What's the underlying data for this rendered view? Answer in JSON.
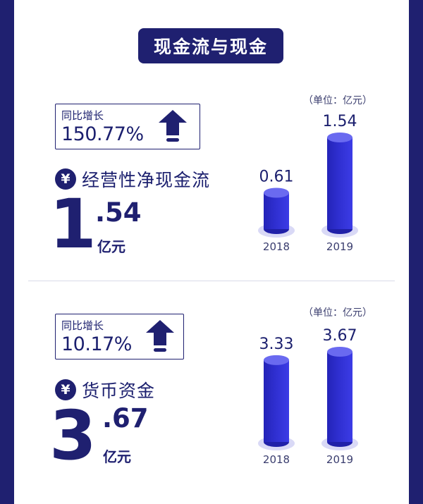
{
  "page": {
    "title": "现金流与现金"
  },
  "sections": [
    {
      "growth_label": "同比增长",
      "growth_value": "150.77%",
      "metric_name": "经营性净现金流",
      "amount_int": "1",
      "amount_dec": ".54",
      "amount_unit": "亿元",
      "unit_note": "（单位：亿元）"
    },
    {
      "growth_label": "同比增长",
      "growth_value": "10.17%",
      "metric_name": "货币资金",
      "amount_int": "3",
      "amount_dec": ".67",
      "amount_unit": "亿元",
      "unit_note": "（单位：亿元）"
    }
  ],
  "icons": {
    "currency": "¥",
    "arrow": "up-arrow-icon"
  },
  "colors": {
    "primary": "#1f2070",
    "bar": "#2f2fd0",
    "bar_top": "#6a6af0"
  },
  "chart_data": [
    {
      "type": "bar",
      "categories": [
        "2018",
        "2019"
      ],
      "values": [
        0.61,
        1.54
      ],
      "value_labels": [
        "0.61",
        "1.54"
      ],
      "ylim": [
        0,
        1.54
      ]
    },
    {
      "type": "bar",
      "categories": [
        "2018",
        "2019"
      ],
      "values": [
        3.33,
        3.67
      ],
      "value_labels": [
        "3.33",
        "3.67"
      ],
      "ylim": [
        0,
        3.67
      ]
    }
  ]
}
